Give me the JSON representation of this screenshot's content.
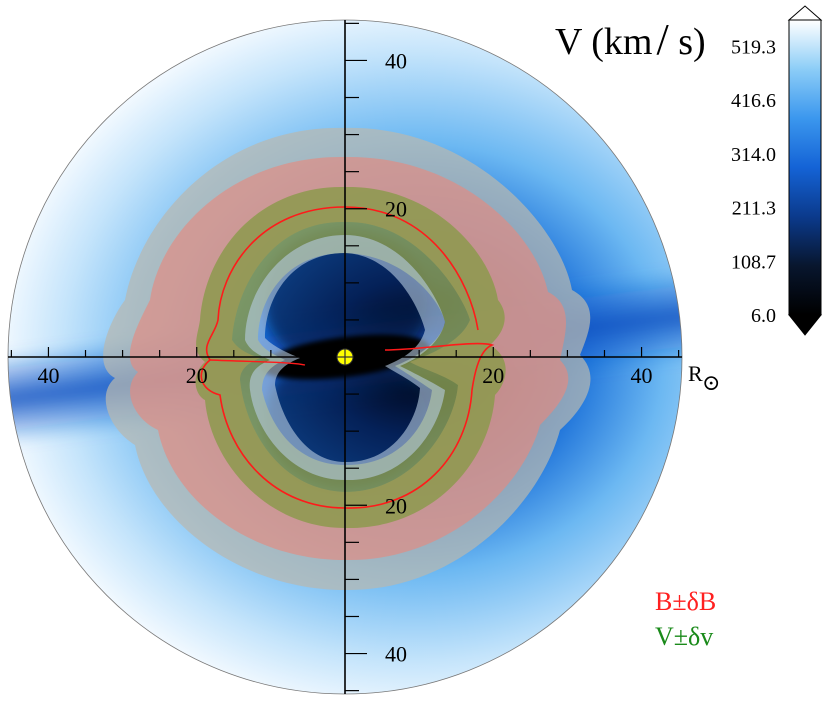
{
  "chart_data": {
    "type": "heatmap",
    "title": "",
    "colorbar": {
      "label_parts": [
        "V (km",
        "/",
        " s)"
      ],
      "tick_labels": [
        "519.3",
        "416.6",
        "314.0",
        "211.3",
        "108.7",
        "6.0"
      ],
      "ticks": [
        519.3,
        416.6,
        314.0,
        211.3,
        108.7,
        6.0
      ],
      "range": [
        6.0,
        570
      ],
      "colormap": [
        "#000000",
        "#08162e",
        "#0b3a8c",
        "#1463d6",
        "#3b97ee",
        "#8ccdf7",
        "#ffffff"
      ],
      "extend": "both"
    },
    "axes": {
      "xlabel": "R",
      "xlabel_subscript": "⊙",
      "xlim": [
        -45,
        45
      ],
      "ylim": [
        -45,
        45
      ],
      "x_ticks": [
        -40,
        -20,
        20,
        40
      ],
      "x_tick_labels": [
        "40",
        "20",
        "20",
        "40"
      ],
      "y_ticks": [
        40,
        20,
        -20,
        -40
      ],
      "y_tick_labels": [
        "40",
        "20",
        "20",
        "40"
      ],
      "minor_tick_step": 5
    },
    "sun": {
      "x": 0,
      "y": 0,
      "color": "#ffff00"
    },
    "bands": [
      {
        "name": "B±δB",
        "color": "#d97070",
        "r_inner": 18,
        "r_outer": 26
      },
      {
        "name": "V±δv",
        "color": "#7a9a40",
        "r_inner": 15,
        "r_outer": 22
      }
    ],
    "contour": {
      "color": "#ff0000",
      "radius": 20
    },
    "legend": {
      "placement": "bottom-right",
      "items": [
        {
          "text": "B±δB",
          "color": "#ff2020"
        },
        {
          "text": "V±δv",
          "color": "#1a8a1a"
        }
      ]
    }
  }
}
